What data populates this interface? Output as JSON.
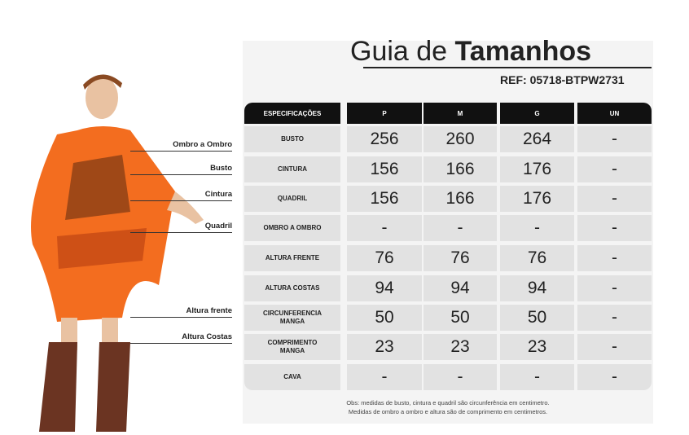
{
  "header": {
    "title_light": "Guia de",
    "title_bold": "Tamanhos",
    "ref_label": "REF:",
    "ref_code": "05718-BTPW2731"
  },
  "labels": [
    "Ombro a Ombro",
    "Busto",
    "Cintura",
    "Quadril",
    "Altura frente",
    "Altura Costas"
  ],
  "table": {
    "columns": [
      "ESPECIFICAÇÕES",
      "P",
      "M",
      "G",
      "UN"
    ],
    "rows": [
      [
        "BUSTO",
        256,
        260,
        264,
        "-"
      ],
      [
        "CINTURA",
        156,
        166,
        176,
        "-"
      ],
      [
        "QUADRIL",
        156,
        166,
        176,
        "-"
      ],
      [
        "OMBRO A OMBRO",
        "-",
        "-",
        "-",
        "-"
      ],
      [
        "ALTURA FRENTE",
        76,
        76,
        76,
        "-"
      ],
      [
        "ALTURA COSTAS",
        94,
        94,
        94,
        "-"
      ],
      [
        "CIRCUNFERENCIA MANGA",
        50,
        50,
        50,
        "-"
      ],
      [
        "COMPRIMENTO MANGA",
        23,
        23,
        23,
        "-"
      ],
      [
        "CAVA",
        "-",
        "-",
        "-",
        "-"
      ]
    ]
  },
  "notes": [
    "Obs: medidas de busto, cintura e quadril são circunferência em centimetro.",
    "Medidas de ombro a ombro e altura são de comprimento em centimetros."
  ]
}
